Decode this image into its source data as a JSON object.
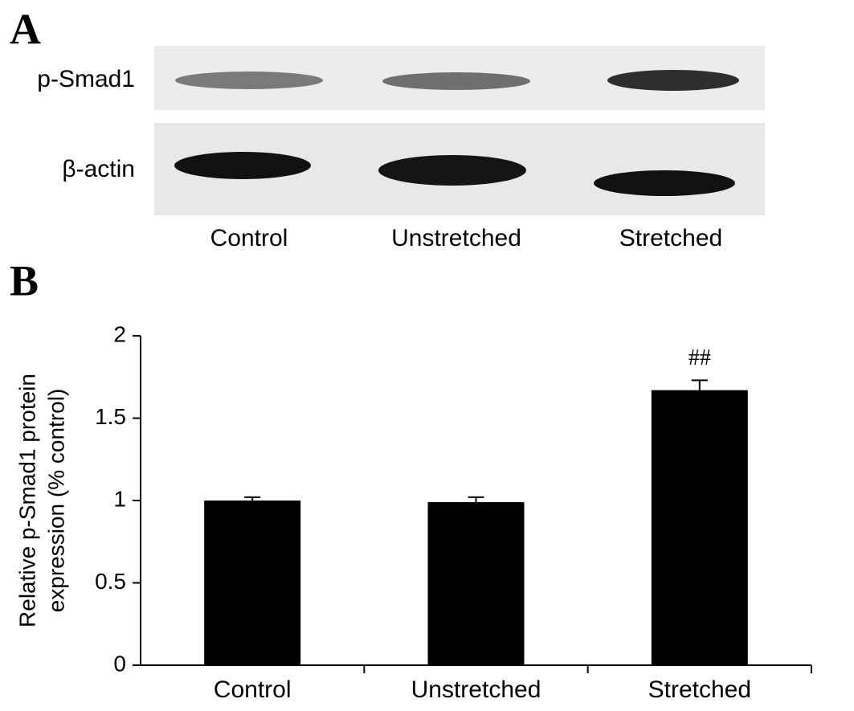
{
  "panel_a": {
    "label": "A",
    "rows": [
      "p-Smad1",
      "β-actin"
    ],
    "lanes": [
      "Control",
      "Unstretched",
      "Stretched"
    ]
  },
  "chart_data": {
    "type": "bar",
    "panel_label": "B",
    "categories": [
      "Control",
      "Unstretched",
      "Stretched"
    ],
    "values": [
      1.0,
      0.99,
      1.67
    ],
    "errors": [
      0.02,
      0.03,
      0.06
    ],
    "color": "#000000",
    "annotations": [
      null,
      null,
      "##"
    ],
    "ylabel": [
      "Relative p-Smad1 protein",
      "expression (% control)"
    ],
    "ylim": [
      0,
      2
    ],
    "yticks": [
      0,
      0.5,
      1,
      1.5,
      2
    ]
  }
}
